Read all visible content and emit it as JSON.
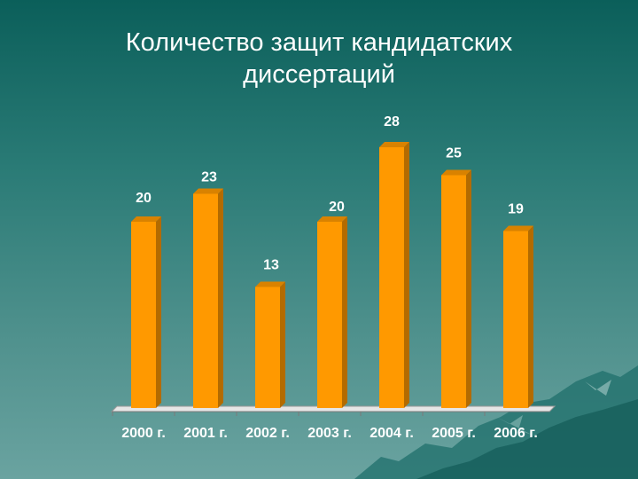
{
  "title_line1": "Количество защит кандидатских",
  "title_line2": "диссертаций",
  "colors": {
    "bar_front": "#ff9900",
    "bar_side": "#b36b00",
    "bar_top": "#d98200",
    "floor": "#e6e6e6",
    "label": "#ffffff"
  },
  "chart_data": {
    "type": "bar",
    "title": "Количество защит кандидатских диссертаций",
    "categories": [
      "2000 г.",
      "2001 г.",
      "2002 г.",
      "2003 г.",
      "2004 г.",
      "2005 г.",
      "2006 г."
    ],
    "values": [
      20,
      23,
      13,
      20,
      28,
      25,
      19
    ],
    "xlabel": "",
    "ylabel": "",
    "grid": false,
    "legend": "none"
  }
}
